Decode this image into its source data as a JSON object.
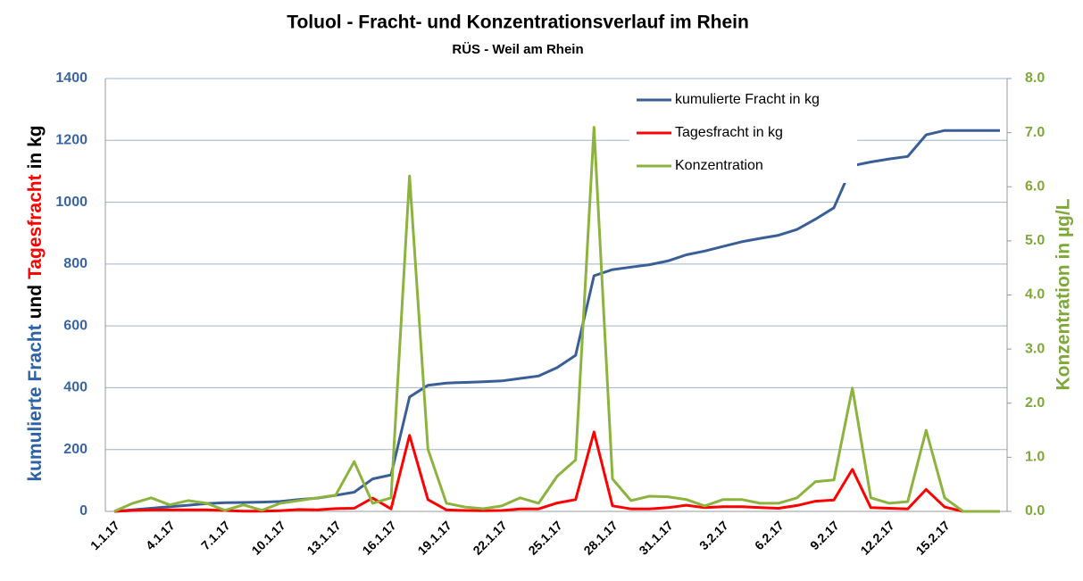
{
  "chart_data": {
    "type": "line",
    "title": "Toluol - Fracht- und Konzentrationsverlauf im Rhein",
    "subtitle": "RÜS - Weil am Rhein",
    "ylabel_parts": [
      {
        "text": "kumulierte Fracht",
        "color": "#2e62a8"
      },
      {
        "text": "und",
        "color": "#000000"
      },
      {
        "text": "Tagesfracht",
        "color": "#ff0000"
      },
      {
        "text": "in kg",
        "color": "#000000"
      }
    ],
    "y2label": "Konzentration in µg/L",
    "ylabel_color": "#3a65a0",
    "y2label_color": "#7fa83a",
    "categories": [
      "1.1.17",
      null,
      null,
      "4.1.17",
      null,
      null,
      "7.1.17",
      null,
      null,
      "10.1.17",
      null,
      null,
      "13.1.17",
      null,
      null,
      "16.1.17",
      null,
      null,
      "19.1.17",
      null,
      null,
      "22.1.17",
      null,
      null,
      "25.1.17",
      null,
      null,
      "28.1.17",
      null,
      null,
      "31.1.17",
      null,
      null,
      "3.2.17",
      null,
      null,
      "6.2.17",
      null,
      null,
      "9.2.17",
      null,
      null,
      "12.2.17",
      null,
      null,
      "15.2.17",
      null,
      null,
      null
    ],
    "ylim": [
      0,
      1400
    ],
    "yticks": [
      0,
      200,
      400,
      600,
      800,
      1000,
      1200,
      1400
    ],
    "y2lim": [
      0,
      8
    ],
    "y2ticks": [
      {
        "value": 0,
        "label": "0.0"
      },
      {
        "value": 1,
        "label": "1.0"
      },
      {
        "value": 2,
        "label": "2.0"
      },
      {
        "value": 3,
        "label": "3.0"
      },
      {
        "value": 4,
        "label": "4.0"
      },
      {
        "value": 5,
        "label": "5.0"
      },
      {
        "value": 6,
        "label": "6.0"
      },
      {
        "value": 7,
        "label": "7.0"
      },
      {
        "value": 8,
        "label": "8.0"
      }
    ],
    "grid": true,
    "legend": "top-right",
    "series": [
      {
        "name": "kumulierte Fracht in kg",
        "color": "#3a5f97",
        "values": [
          0,
          5,
          10,
          15,
          20,
          25,
          28,
          29,
          30,
          32,
          38,
          43,
          52,
          62,
          105,
          118,
          370,
          408,
          415,
          417,
          419,
          422,
          430,
          438,
          465,
          505,
          762,
          782,
          790,
          798,
          810,
          830,
          842,
          857,
          872,
          883,
          893,
          912,
          945,
          982,
          1118,
          1130,
          1140,
          1148,
          1218,
          1232,
          1232,
          1232,
          1232
        ]
      },
      {
        "name": "Tagesfracht in kg",
        "color": "#ff0000",
        "values": [
          0,
          3,
          5,
          5,
          5,
          5,
          3,
          1,
          1,
          2,
          6,
          5,
          9,
          10,
          43,
          8,
          246,
          38,
          5,
          3,
          2,
          3,
          8,
          8,
          27,
          38,
          257,
          18,
          8,
          8,
          12,
          20,
          12,
          15,
          15,
          12,
          10,
          19,
          33,
          37,
          136,
          12,
          10,
          8,
          71,
          14,
          0,
          0,
          0
        ]
      },
      {
        "name": "Konzentration",
        "color": "#8db33f",
        "axis": "y2",
        "values": [
          0,
          0.15,
          0.25,
          0.12,
          0.2,
          0.15,
          0.02,
          0.12,
          0.02,
          0.15,
          0.2,
          0.25,
          0.3,
          0.92,
          0.15,
          0.25,
          6.2,
          1.15,
          0.15,
          0.08,
          0.05,
          0.1,
          0.25,
          0.15,
          0.65,
          0.95,
          7.1,
          0.6,
          0.2,
          0.28,
          0.27,
          0.22,
          0.1,
          0.22,
          0.22,
          0.15,
          0.15,
          0.25,
          0.55,
          0.58,
          2.28,
          0.25,
          0.15,
          0.18,
          1.5,
          0.25,
          0,
          0,
          0
        ]
      }
    ]
  }
}
